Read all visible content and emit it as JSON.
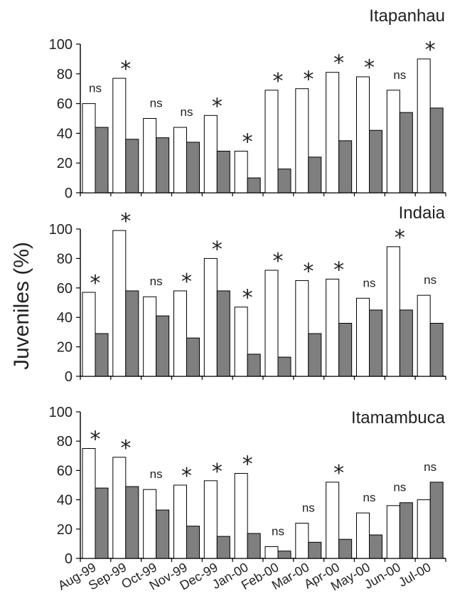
{
  "y_axis_title": "Juveniles (%)",
  "colors": {
    "white_bar": "#ffffff",
    "gray_bar": "#7f7f7f",
    "outline": "#000000"
  },
  "chart_data": [
    {
      "type": "bar",
      "title": "Itapanhau",
      "categories": [
        "Aug-99",
        "Sep-99",
        "Oct-99",
        "Nov-99",
        "Dec-99",
        "Jan-00",
        "Feb-00",
        "Mar-00",
        "Apr-00",
        "May-00",
        "Jun-00",
        "Jul-00"
      ],
      "series": [
        {
          "color": "#ffffff",
          "values": [
            60,
            77,
            50,
            44,
            52,
            28,
            69,
            70,
            81,
            78,
            69,
            90
          ]
        },
        {
          "color": "#7f7f7f",
          "values": [
            44,
            36,
            37,
            34,
            28,
            10,
            16,
            24,
            35,
            42,
            54,
            57
          ]
        }
      ],
      "annotations": [
        "ns",
        "*",
        "ns",
        "ns",
        "*",
        "*",
        "*",
        "*",
        "*",
        "*",
        "ns",
        "*"
      ],
      "yticks": [
        0,
        20,
        40,
        60,
        80,
        100
      ],
      "ylim": [
        0,
        100
      ]
    },
    {
      "type": "bar",
      "title": "Indaia",
      "categories": [
        "Aug-99",
        "Sep-99",
        "Oct-99",
        "Nov-99",
        "Dec-99",
        "Jan-00",
        "Feb-00",
        "Mar-00",
        "Apr-00",
        "May-00",
        "Jun-00",
        "Jul-00"
      ],
      "series": [
        {
          "color": "#ffffff",
          "values": [
            57,
            99,
            54,
            58,
            80,
            47,
            72,
            65,
            66,
            53,
            88,
            55
          ]
        },
        {
          "color": "#7f7f7f",
          "values": [
            29,
            58,
            41,
            26,
            58,
            15,
            13,
            29,
            36,
            45,
            45,
            36
          ]
        }
      ],
      "annotations": [
        "*",
        "*",
        "ns",
        "*",
        "*",
        "*",
        "*",
        "*",
        "*",
        "ns",
        "*",
        "ns"
      ],
      "yticks": [
        0,
        20,
        40,
        60,
        80,
        100
      ],
      "ylim": [
        0,
        100
      ]
    },
    {
      "type": "bar",
      "title": "Itamambuca",
      "categories": [
        "Aug-99",
        "Sep-99",
        "Oct-99",
        "Nov-99",
        "Dec-99",
        "Jan-00",
        "Feb-00",
        "Mar-00",
        "Apr-00",
        "May-00",
        "Jun-00",
        "Jul-00"
      ],
      "series": [
        {
          "color": "#ffffff",
          "values": [
            75,
            69,
            47,
            50,
            53,
            58,
            8,
            24,
            52,
            31,
            36,
            40
          ]
        },
        {
          "color": "#7f7f7f",
          "values": [
            48,
            49,
            33,
            22,
            15,
            17,
            5,
            11,
            13,
            16,
            38,
            52
          ]
        }
      ],
      "annotations": [
        "*",
        "*",
        "ns",
        "*",
        "*",
        "*",
        "ns",
        "ns",
        "*",
        "ns",
        "ns",
        "ns"
      ],
      "yticks": [
        0,
        20,
        40,
        60,
        80,
        100
      ],
      "ylim": [
        0,
        100
      ]
    }
  ]
}
